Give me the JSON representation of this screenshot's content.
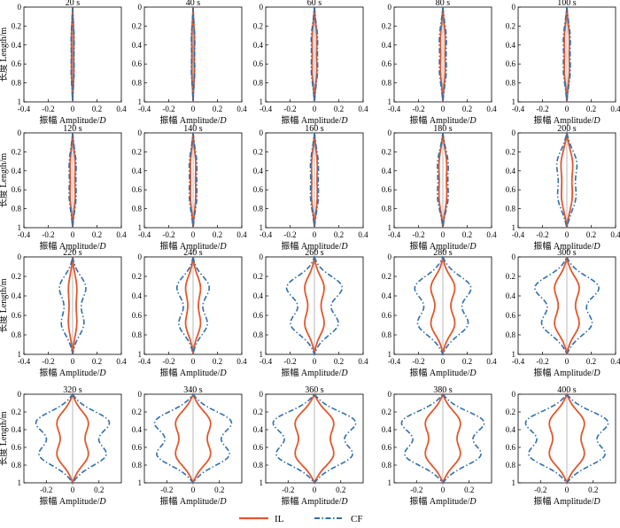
{
  "figure": {
    "xlabel_prefix": "振幅 Amplitude/",
    "xlabel_var": "D",
    "ylabel": "长度 Length/m",
    "legend": [
      {
        "name": "IL",
        "color": "#e2572b",
        "dash": "solid"
      },
      {
        "name": "CF",
        "color": "#2f6fae",
        "dash": "dashdot"
      }
    ]
  },
  "chart_data": [
    {
      "type": "line",
      "title": "20 s",
      "xlim": [
        -0.4,
        0.4
      ],
      "ylim": [
        0,
        1
      ],
      "xticks": [
        "-0.4",
        "-0.2",
        "0",
        "0.2",
        "0.4"
      ],
      "yticks": [
        "0",
        "0.2",
        "0.4",
        "0.6",
        "0.8",
        "1"
      ],
      "series": [
        {
          "name": "IL",
          "peaks": [
            0.008,
            0.008
          ],
          "dip": 0.006
        },
        {
          "name": "CF",
          "peaks": [
            0.01,
            0.01
          ],
          "dip": 0.008
        }
      ]
    },
    {
      "type": "line",
      "title": "40 s",
      "xlim": [
        -0.4,
        0.4
      ],
      "ylim": [
        0,
        1
      ],
      "xticks": [
        "-0.4",
        "-0.2",
        "0",
        "0.2",
        "0.4"
      ],
      "yticks": [
        "0",
        "0.2",
        "0.4",
        "0.6",
        "0.8",
        "1"
      ],
      "series": [
        {
          "name": "IL",
          "peaks": [
            0.009,
            0.009
          ],
          "dip": 0.007
        },
        {
          "name": "CF",
          "peaks": [
            0.011,
            0.011
          ],
          "dip": 0.009
        }
      ]
    },
    {
      "type": "line",
      "title": "60 s",
      "xlim": [
        -0.4,
        0.4
      ],
      "ylim": [
        0,
        1
      ],
      "xticks": [
        "-0.4",
        "-0.2",
        "0",
        "0.2",
        "0.4"
      ],
      "yticks": [
        "0",
        "0.2",
        "0.4",
        "0.6",
        "0.8",
        "1"
      ],
      "series": [
        {
          "name": "IL",
          "peaks": [
            0.015,
            0.015
          ],
          "dip": 0.013
        },
        {
          "name": "CF",
          "peaks": [
            0.02,
            0.02
          ],
          "dip": 0.018
        }
      ]
    },
    {
      "type": "line",
      "title": "80 s",
      "xlim": [
        -0.4,
        0.4
      ],
      "ylim": [
        0,
        1
      ],
      "xticks": [
        "-0.4",
        "-0.2",
        "0",
        "0.2",
        "0.4"
      ],
      "yticks": [
        "0",
        "0.2",
        "0.4",
        "0.6",
        "0.8",
        "1"
      ],
      "series": [
        {
          "name": "IL",
          "peaks": [
            0.015,
            0.015
          ],
          "dip": 0.013
        },
        {
          "name": "CF",
          "peaks": [
            0.022,
            0.022
          ],
          "dip": 0.02
        }
      ]
    },
    {
      "type": "line",
      "title": "100 s",
      "xlim": [
        -0.4,
        0.4
      ],
      "ylim": [
        0,
        1
      ],
      "xticks": [
        "-0.4",
        "-0.2",
        "0",
        "0.2",
        "0.4"
      ],
      "yticks": [
        "0",
        "0.2",
        "0.4",
        "0.6",
        "0.8",
        "1"
      ],
      "series": [
        {
          "name": "IL",
          "peaks": [
            0.016,
            0.016
          ],
          "dip": 0.014
        },
        {
          "name": "CF",
          "peaks": [
            0.022,
            0.022
          ],
          "dip": 0.02
        }
      ]
    },
    {
      "type": "line",
      "title": "120 s",
      "xlim": [
        -0.4,
        0.4
      ],
      "ylim": [
        0,
        1
      ],
      "xticks": [
        "-0.4",
        "-0.2",
        "0",
        "0.2",
        "0.4"
      ],
      "yticks": [
        "0",
        "0.2",
        "0.4",
        "0.6",
        "0.8",
        "1"
      ],
      "series": [
        {
          "name": "IL",
          "peaks": [
            0.016,
            0.016
          ],
          "dip": 0.014
        },
        {
          "name": "CF",
          "peaks": [
            0.022,
            0.022
          ],
          "dip": 0.02
        }
      ]
    },
    {
      "type": "line",
      "title": "140 s",
      "xlim": [
        -0.4,
        0.4
      ],
      "ylim": [
        0,
        1
      ],
      "xticks": [
        "-0.4",
        "-0.2",
        "0",
        "0.2",
        "0.4"
      ],
      "yticks": [
        "0",
        "0.2",
        "0.4",
        "0.6",
        "0.8",
        "1"
      ],
      "series": [
        {
          "name": "IL",
          "peaks": [
            0.017,
            0.017
          ],
          "dip": 0.015
        },
        {
          "name": "CF",
          "peaks": [
            0.024,
            0.024
          ],
          "dip": 0.022
        }
      ]
    },
    {
      "type": "line",
      "title": "160 s",
      "xlim": [
        -0.4,
        0.4
      ],
      "ylim": [
        0,
        1
      ],
      "xticks": [
        "-0.4",
        "-0.2",
        "0",
        "0.2",
        "0.4"
      ],
      "yticks": [
        "0",
        "0.2",
        "0.4",
        "0.6",
        "0.8",
        "1"
      ],
      "series": [
        {
          "name": "IL",
          "peaks": [
            0.018,
            0.018
          ],
          "dip": 0.016
        },
        {
          "name": "CF",
          "peaks": [
            0.025,
            0.025
          ],
          "dip": 0.023
        }
      ]
    },
    {
      "type": "line",
      "title": "180 s",
      "xlim": [
        -0.4,
        0.4
      ],
      "ylim": [
        0,
        1
      ],
      "xticks": [
        "-0.4",
        "-0.2",
        "0",
        "0.2",
        "0.4"
      ],
      "yticks": [
        "0",
        "0.2",
        "0.4",
        "0.6",
        "0.8",
        "1"
      ],
      "series": [
        {
          "name": "IL",
          "peaks": [
            0.025,
            0.025
          ],
          "dip": 0.022
        },
        {
          "name": "CF",
          "peaks": [
            0.035,
            0.035
          ],
          "dip": 0.03
        }
      ]
    },
    {
      "type": "line",
      "title": "200 s",
      "xlim": [
        -0.4,
        0.4
      ],
      "ylim": [
        0,
        1
      ],
      "xticks": [
        "-0.4",
        "-0.2",
        "0",
        "0.2",
        "0.4"
      ],
      "yticks": [
        "0",
        "0.2",
        "0.4",
        "0.6",
        "0.8",
        "1"
      ],
      "series": [
        {
          "name": "IL",
          "peaks": [
            0.04,
            0.035
          ],
          "dip": 0.03
        },
        {
          "name": "CF",
          "peaks": [
            0.07,
            0.06
          ],
          "dip": 0.05
        }
      ]
    },
    {
      "type": "line",
      "title": "220 s",
      "xlim": [
        -0.4,
        0.4
      ],
      "ylim": [
        0,
        1
      ],
      "xticks": [
        "-0.4",
        "-0.2",
        "0",
        "0.2",
        "0.4"
      ],
      "yticks": [
        "0",
        "0.2",
        "0.4",
        "0.6",
        "0.8",
        "1"
      ],
      "series": [
        {
          "name": "IL",
          "peaks": [
            0.03,
            0.03
          ],
          "dip": 0.02
        },
        {
          "name": "CF",
          "peaks": [
            0.11,
            0.09
          ],
          "dip": 0.04
        }
      ]
    },
    {
      "type": "line",
      "title": "240 s",
      "xlim": [
        -0.4,
        0.4
      ],
      "ylim": [
        0,
        1
      ],
      "xticks": [
        "-0.4",
        "-0.2",
        "0",
        "0.2",
        "0.4"
      ],
      "yticks": [
        "0",
        "0.2",
        "0.4",
        "0.6",
        "0.8",
        "1"
      ],
      "series": [
        {
          "name": "IL",
          "peaks": [
            0.06,
            0.06
          ],
          "dip": 0.025
        },
        {
          "name": "CF",
          "peaks": [
            0.14,
            0.12
          ],
          "dip": 0.04
        }
      ]
    },
    {
      "type": "line",
      "title": "260 s",
      "xlim": [
        -0.4,
        0.4
      ],
      "ylim": [
        0,
        1
      ],
      "xticks": [
        "-0.4",
        "-0.2",
        "0",
        "0.2",
        "0.4"
      ],
      "yticks": [
        "0",
        "0.2",
        "0.4",
        "0.6",
        "0.8",
        "1"
      ],
      "series": [
        {
          "name": "IL",
          "peaks": [
            0.08,
            0.08
          ],
          "dip": 0.03
        },
        {
          "name": "CF",
          "peaks": [
            0.24,
            0.2
          ],
          "dip": 0.07
        }
      ]
    },
    {
      "type": "line",
      "title": "280 s",
      "xlim": [
        -0.4,
        0.4
      ],
      "ylim": [
        0,
        1
      ],
      "xticks": [
        "-0.4",
        "-0.2",
        "0",
        "0.2",
        "0.4"
      ],
      "yticks": [
        "0",
        "0.2",
        "0.4",
        "0.6",
        "0.8",
        "1"
      ],
      "series": [
        {
          "name": "IL",
          "peaks": [
            0.1,
            0.1
          ],
          "dip": 0.035
        },
        {
          "name": "CF",
          "peaks": [
            0.23,
            0.2
          ],
          "dip": 0.09
        }
      ]
    },
    {
      "type": "line",
      "title": "300 s",
      "xlim": [
        -0.4,
        0.4
      ],
      "ylim": [
        0,
        1
      ],
      "xticks": [
        "-0.4",
        "-0.2",
        "0",
        "0.2",
        "0.4"
      ],
      "yticks": [
        "0",
        "0.2",
        "0.4",
        "0.6",
        "0.8",
        "1"
      ],
      "series": [
        {
          "name": "IL",
          "peaks": [
            0.1,
            0.1
          ],
          "dip": 0.04
        },
        {
          "name": "CF",
          "peaks": [
            0.27,
            0.2
          ],
          "dip": 0.09
        }
      ]
    },
    {
      "type": "line",
      "title": "320 s",
      "xlim": [
        -0.37,
        0.37
      ],
      "ylim": [
        0,
        1
      ],
      "xticks": [
        "-0.2",
        "0",
        "0.2"
      ],
      "yticks": [
        "0",
        "0.2",
        "0.4",
        "0.6",
        "0.8",
        "1"
      ],
      "series": [
        {
          "name": "IL",
          "peaks": [
            0.11,
            0.11
          ],
          "dip": 0.06
        },
        {
          "name": "CF",
          "peaks": [
            0.27,
            0.24
          ],
          "dip": 0.12
        }
      ]
    },
    {
      "type": "line",
      "title": "340 s",
      "xlim": [
        -0.37,
        0.37
      ],
      "ylim": [
        0,
        1
      ],
      "xticks": [
        "-0.2",
        "0",
        "0.2"
      ],
      "yticks": [
        "0",
        "0.2",
        "0.4",
        "0.6",
        "0.8",
        "1"
      ],
      "series": [
        {
          "name": "IL",
          "peaks": [
            0.12,
            0.12
          ],
          "dip": 0.07
        },
        {
          "name": "CF",
          "peaks": [
            0.28,
            0.26
          ],
          "dip": 0.13
        }
      ]
    },
    {
      "type": "line",
      "title": "360 s",
      "xlim": [
        -0.37,
        0.37
      ],
      "ylim": [
        0,
        1
      ],
      "xticks": [
        "-0.2",
        "0",
        "0.2"
      ],
      "yticks": [
        "0",
        "0.2",
        "0.4",
        "0.6",
        "0.8",
        "1"
      ],
      "series": [
        {
          "name": "IL",
          "peaks": [
            0.13,
            0.13
          ],
          "dip": 0.08
        },
        {
          "name": "CF",
          "peaks": [
            0.3,
            0.27
          ],
          "dip": 0.14
        }
      ]
    },
    {
      "type": "line",
      "title": "380 s",
      "xlim": [
        -0.37,
        0.37
      ],
      "ylim": [
        0,
        1
      ],
      "xticks": [
        "-0.2",
        "0",
        "0.2"
      ],
      "yticks": [
        "0",
        "0.2",
        "0.4",
        "0.6",
        "0.8",
        "1"
      ],
      "series": [
        {
          "name": "IL",
          "peaks": [
            0.12,
            0.12
          ],
          "dip": 0.07
        },
        {
          "name": "CF",
          "peaks": [
            0.3,
            0.27
          ],
          "dip": 0.14
        }
      ]
    },
    {
      "type": "line",
      "title": "400 s",
      "xlim": [
        -0.37,
        0.37
      ],
      "ylim": [
        0,
        1
      ],
      "xticks": [
        "-0.2",
        "0",
        "0.2"
      ],
      "yticks": [
        "0",
        "0.2",
        "0.4",
        "0.6",
        "0.8",
        "1"
      ],
      "series": [
        {
          "name": "IL",
          "peaks": [
            0.12,
            0.12
          ],
          "dip": 0.07
        },
        {
          "name": "CF",
          "peaks": [
            0.3,
            0.27
          ],
          "dip": 0.14
        }
      ]
    }
  ]
}
